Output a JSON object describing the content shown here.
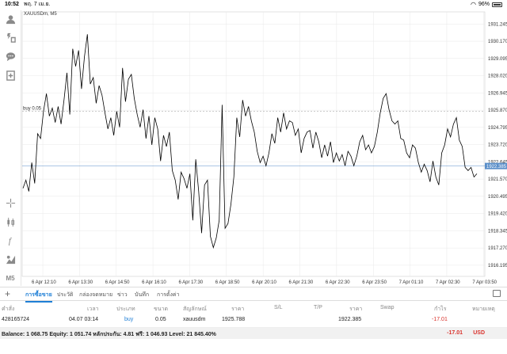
{
  "statusbar": {
    "time": "10:52",
    "date": "พฤ. 7 เม.ย.",
    "battery": "96%"
  },
  "chart": {
    "symbol": "XAUUSDm, M5",
    "buy_label": "buy 0.05",
    "current_price": "1922.385",
    "colors": {
      "line": "#000000",
      "grid": "#e8e8e8",
      "price_line": "#5b8fc9",
      "price_tag_bg": "#5b8fc9",
      "buy_line": "#9a9a9a"
    }
  },
  "chart_data": {
    "type": "line",
    "title": "XAUUSDm, M5",
    "ylim": [
      1915.5,
      1932.0
    ],
    "yticks": [
      "1931.245",
      "1930.170",
      "1929.095",
      "1928.020",
      "1926.945",
      "1925.870",
      "1924.795",
      "1923.720",
      "1922.645",
      "1921.570",
      "1920.495",
      "1919.420",
      "1918.345",
      "1917.270",
      "1916.195"
    ],
    "xticks": [
      "6 Apr 12:10",
      "6 Apr 13:30",
      "6 Apr 14:50",
      "6 Apr 16:10",
      "6 Apr 17:30",
      "6 Apr 18:50",
      "6 Apr 20:10",
      "6 Apr 21:30",
      "6 Apr 22:30",
      "6 Apr 23:50",
      "7 Apr 01:10",
      "7 Apr 02:30",
      "7 Apr 03:50"
    ],
    "buy_level": 1925.788,
    "current_price": 1922.385,
    "series": [
      {
        "values": [
          1921.0,
          1921.5,
          1920.8,
          1922.6,
          1921.3,
          1924.4,
          1924.1,
          1925.8,
          1926.9,
          1925.5,
          1926.0,
          1925.1,
          1926.1,
          1925.0,
          1926.5,
          1928.2,
          1925.6,
          1929.7,
          1928.6,
          1929.6,
          1927.2,
          1929.2,
          1930.6,
          1927.5,
          1927.9,
          1926.3,
          1927.4,
          1926.8,
          1925.7,
          1924.7,
          1925.4,
          1924.3,
          1925.8,
          1924.8,
          1928.5,
          1926.4,
          1927.8,
          1928.1,
          1926.6,
          1925.6,
          1924.8,
          1925.9,
          1924.1,
          1925.5,
          1923.7,
          1925.4,
          1924.7,
          1922.7,
          1924.3,
          1923.6,
          1924.5,
          1922.1,
          1921.5,
          1920.3,
          1922.0,
          1921.6,
          1921.0,
          1921.9,
          1919.0,
          1922.8,
          1920.8,
          1918.2,
          1921.2,
          1921.5,
          1918.0,
          1917.3,
          1917.9,
          1919.0,
          1926.2,
          1918.5,
          1918.8,
          1920.0,
          1921.7,
          1925.4,
          1924.2,
          1926.5,
          1925.5,
          1926.1,
          1925.2,
          1924.5,
          1923.3,
          1922.6,
          1923.0,
          1922.4,
          1923.2,
          1924.4,
          1923.8,
          1925.4,
          1924.5,
          1925.7,
          1924.7,
          1925.2,
          1925.1,
          1924.3,
          1924.7,
          1923.2,
          1924.1,
          1924.5,
          1924.6,
          1923.5,
          1924.5,
          1923.9,
          1922.9,
          1923.7,
          1923.0,
          1923.9,
          1922.6,
          1923.2,
          1922.7,
          1923.1,
          1922.4,
          1923.3,
          1923.0,
          1922.4,
          1923.0,
          1923.9,
          1924.3,
          1923.4,
          1923.7,
          1923.2,
          1923.6,
          1924.5,
          1925.7,
          1926.6,
          1926.9,
          1925.9,
          1925.2,
          1925.0,
          1925.2,
          1924.1,
          1924.0,
          1923.2,
          1922.9,
          1923.7,
          1923.5,
          1922.6,
          1922.0,
          1922.5,
          1922.1,
          1921.4,
          1922.7,
          1921.7,
          1921.2,
          1923.2,
          1923.7,
          1924.7,
          1924.2,
          1925.0,
          1925.4,
          1924.0,
          1923.6,
          1922.3,
          1922.1,
          1922.3,
          1921.7,
          1921.9
        ]
      }
    ]
  },
  "toolbar": {
    "items": [
      "user-icon",
      "quote-icon",
      "chat-icon",
      "new-order-icon",
      "crosshair-icon",
      "candles-icon",
      "indicator-icon",
      "objects-icon"
    ],
    "timeframe": "M5"
  },
  "tabs": {
    "items": [
      {
        "label": "การซื้อขาย",
        "active": true
      },
      {
        "label": "ประวัติ",
        "active": false
      },
      {
        "label": "กล่องจดหมาย",
        "active": false
      },
      {
        "label": "ข่าว",
        "active": false
      },
      {
        "label": "บันทึก",
        "active": false
      },
      {
        "label": "การตั้งค่า",
        "active": false
      }
    ]
  },
  "table": {
    "headers": {
      "order": "คำสั่ง",
      "time": "เวลา",
      "type": "ประเภท",
      "volume": "ขนาด",
      "symbol": "สัญลักษณ์",
      "price": "ราคา",
      "sl": "S/L",
      "tp": "T/P",
      "price2": "ราคา",
      "swap": "Swap",
      "profit": "กำไร",
      "comment": "หมายเหตุ"
    },
    "rows": [
      {
        "order": "428165724",
        "time": "04.07 03:14",
        "type": "buy",
        "volume": "0.05",
        "symbol": "xauusdm",
        "price": "1925.788",
        "sl": "",
        "tp": "",
        "price2": "1922.385",
        "swap": "",
        "profit": "-17.01",
        "comment": ""
      }
    ]
  },
  "balance": {
    "text": "Balance: 1 068.75 Equity: 1 051.74 หลักประกัน: 4.81 ฟรี: 1 046.93 Level: 21 845.40%",
    "profit": "-17.01",
    "currency": "USD"
  }
}
